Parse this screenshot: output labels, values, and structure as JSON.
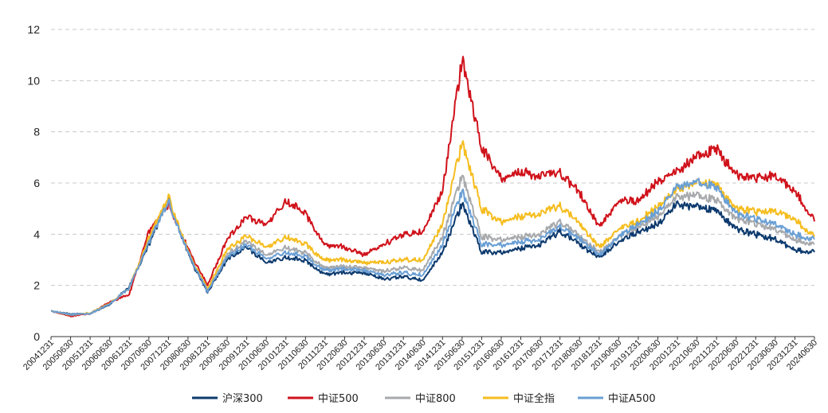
{
  "chart_data": {
    "type": "line",
    "title": "",
    "xlabel": "",
    "ylabel": "",
    "ylim": [
      0,
      12
    ],
    "yticks": [
      0,
      2,
      4,
      6,
      8,
      10,
      12
    ],
    "grid": "horizontal dashed",
    "legend_position": "bottom",
    "x_ticks": [
      "20041231",
      "20050630",
      "20051231",
      "20060630",
      "20061231",
      "20070630",
      "20071231",
      "20080630",
      "20081231",
      "20090630",
      "20091231",
      "20100630",
      "20101231",
      "20110630",
      "20111231",
      "20120630",
      "20121231",
      "20130630",
      "20131231",
      "20140630",
      "20141231",
      "20150630",
      "20151231",
      "20160630",
      "20161231",
      "20170630",
      "20171231",
      "20180630",
      "20181231",
      "20190630",
      "20191231",
      "20200630",
      "20201231",
      "20210630",
      "20211231",
      "20220630",
      "20221231",
      "20230630",
      "20231231",
      "20240630"
    ],
    "series": [
      {
        "name": "沪深300",
        "color": "#0d3a6e",
        "values": [
          1.0,
          0.88,
          0.9,
          1.25,
          1.95,
          3.6,
          5.4,
          3.2,
          1.72,
          3.0,
          3.5,
          2.9,
          3.1,
          2.95,
          2.45,
          2.5,
          2.5,
          2.25,
          2.35,
          2.2,
          3.3,
          5.2,
          3.3,
          3.3,
          3.45,
          3.6,
          4.1,
          3.6,
          3.1,
          3.7,
          4.1,
          4.4,
          5.2,
          5.05,
          4.9,
          4.2,
          4.0,
          3.8,
          3.4,
          3.3
        ]
      },
      {
        "name": "中证500",
        "color": "#d0121b",
        "values": [
          1.0,
          0.8,
          0.9,
          1.35,
          1.65,
          4.1,
          5.2,
          3.4,
          2.0,
          3.8,
          4.7,
          4.4,
          5.3,
          4.8,
          3.6,
          3.5,
          3.2,
          3.6,
          4.0,
          4.1,
          5.7,
          10.8,
          7.4,
          6.2,
          6.4,
          6.3,
          6.4,
          5.6,
          4.3,
          5.3,
          5.3,
          6.1,
          6.5,
          7.0,
          7.3,
          6.3,
          6.2,
          6.3,
          5.7,
          4.5
        ]
      },
      {
        "name": "中证800",
        "color": "#a7a9ac",
        "values": [
          1.0,
          0.86,
          0.9,
          1.28,
          1.9,
          3.75,
          5.35,
          3.25,
          1.78,
          3.2,
          3.75,
          3.2,
          3.5,
          3.25,
          2.7,
          2.75,
          2.7,
          2.55,
          2.7,
          2.6,
          3.9,
          6.3,
          3.9,
          3.8,
          3.9,
          4.0,
          4.5,
          3.9,
          3.3,
          3.9,
          4.3,
          4.7,
          5.5,
          5.5,
          5.3,
          4.6,
          4.4,
          4.2,
          3.8,
          3.6
        ]
      },
      {
        "name": "中证全指",
        "color": "#f5bd1f",
        "values": [
          1.0,
          0.85,
          0.92,
          1.3,
          1.9,
          3.85,
          5.5,
          3.3,
          1.85,
          3.4,
          3.95,
          3.5,
          3.9,
          3.6,
          3.0,
          3.0,
          2.9,
          2.9,
          3.0,
          3.0,
          4.4,
          7.6,
          5.0,
          4.5,
          4.7,
          4.8,
          5.1,
          4.4,
          3.5,
          4.2,
          4.5,
          5.1,
          5.8,
          6.0,
          5.9,
          5.0,
          4.9,
          4.9,
          4.6,
          3.9
        ]
      },
      {
        "name": "中证A500",
        "color": "#6a9fd4",
        "values": [
          1.0,
          0.86,
          0.9,
          1.28,
          1.9,
          3.7,
          5.3,
          3.25,
          1.76,
          3.1,
          3.6,
          3.05,
          3.3,
          3.1,
          2.6,
          2.65,
          2.6,
          2.4,
          2.5,
          2.4,
          3.6,
          5.7,
          3.6,
          3.6,
          3.7,
          3.8,
          4.3,
          3.8,
          3.2,
          3.9,
          4.4,
          4.9,
          5.9,
          6.0,
          5.8,
          4.8,
          4.6,
          4.4,
          4.0,
          3.8
        ]
      }
    ]
  }
}
